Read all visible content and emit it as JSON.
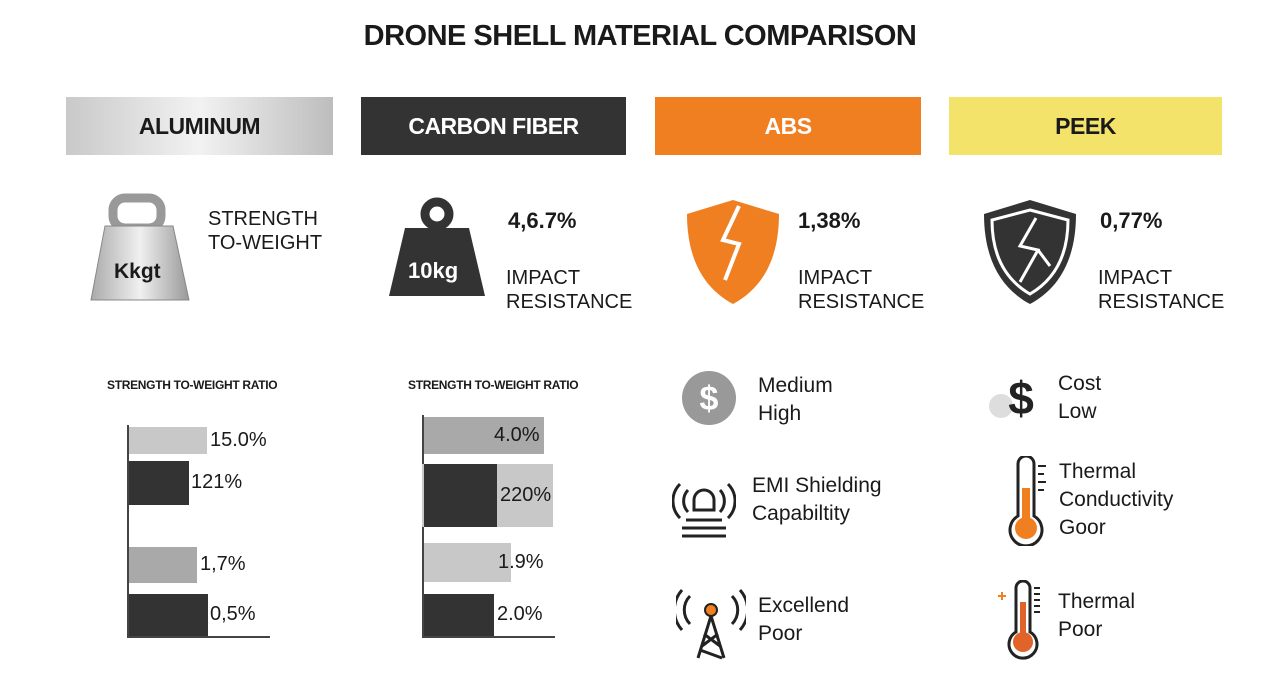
{
  "title": "DRONE SHELL MATERIAL COMPARISON",
  "materials": [
    {
      "name": "ALUMINUM",
      "icon_label": "Kkgt",
      "text": "STRENGTH\nTO-WEIGHT"
    },
    {
      "name": "CARBON FIBER",
      "icon_label": "10kg",
      "value": "4,6.7%",
      "text": "IMPACT\nRESISTANCE"
    },
    {
      "name": "ABS",
      "value": "1,38%",
      "text": "IMPACT\nRESISTANCE"
    },
    {
      "name": "PEEK",
      "value": "0,77%",
      "text": "IMPACT\nRESISTANCE"
    }
  ],
  "colors": {
    "abs": "#f07f22",
    "peek": "#f3e36a",
    "carbon": "#333333",
    "bar_dark": "#333333",
    "bar_light": "#c8c8c8",
    "bar_mid": "#a9a9a9"
  },
  "abs_props": [
    {
      "icon": "dollar-circle-icon",
      "text": "Medium\nHigh"
    },
    {
      "icon": "emi-signal-icon",
      "text": "EMI Shielding\nCapabiltity"
    },
    {
      "icon": "radio-tower-icon",
      "text": "Excellend\nPoor"
    }
  ],
  "peek_props": [
    {
      "icon": "dollar-icon",
      "text": "Cost\nLow"
    },
    {
      "icon": "thermometer-icon",
      "text": "Thermal\nConductivity\nGoor"
    },
    {
      "icon": "thermometer-icon",
      "text": "Thermal\nPoor"
    }
  ],
  "chart_data": [
    {
      "type": "bar",
      "orientation": "horizontal",
      "title": "STRENGTH TO-WEIGHT RATIO",
      "labels": [
        "15.0%",
        "121%",
        "1,7%",
        "0,5%"
      ]
    },
    {
      "type": "bar",
      "orientation": "horizontal",
      "title": "STRENGTH TO-WEIGHT RATIO",
      "labels": [
        "4.0%",
        "220%",
        "1.9%",
        "2.0%"
      ]
    }
  ]
}
